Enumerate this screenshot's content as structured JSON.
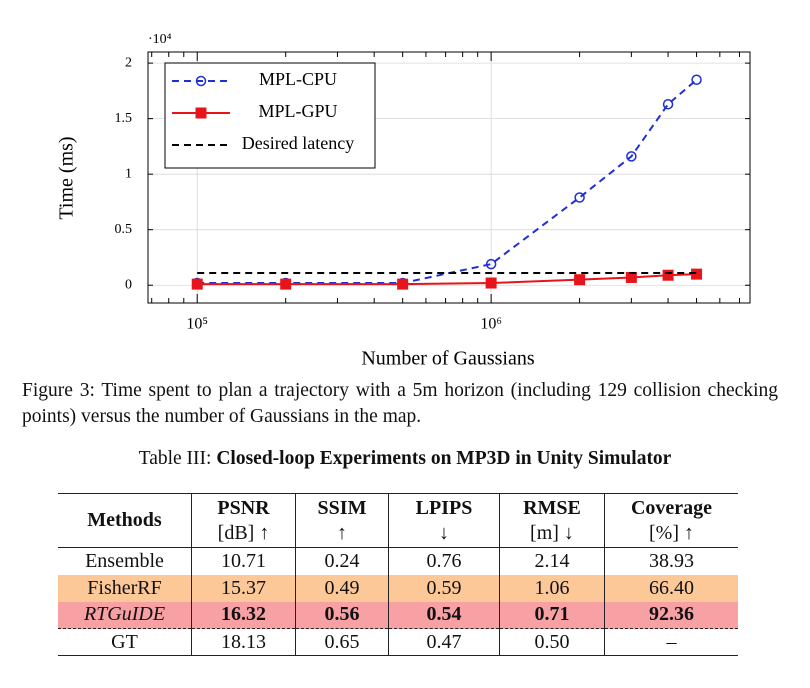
{
  "chart_data": {
    "type": "line",
    "y_multiplier": "·10⁴",
    "x_label": "Number of Gaussians",
    "y_label": "Time (ms)",
    "log_x": true,
    "grid": true,
    "legend": "upper left",
    "xlim": [
      68000,
      7600000
    ],
    "ylim": [
      -0.16,
      2.1
    ],
    "xticks": [
      {
        "value": 100000,
        "label": "10⁵"
      },
      {
        "value": 1000000,
        "label": "10⁶"
      }
    ],
    "xminor_ticks": [
      70000,
      80000,
      90000,
      200000,
      300000,
      400000,
      500000,
      600000,
      700000,
      800000,
      900000,
      2000000,
      3000000,
      4000000,
      5000000,
      6000000,
      7000000
    ],
    "yticks": [
      0,
      0.5,
      1,
      1.5,
      2
    ],
    "series": [
      {
        "name": "MPL-CPU",
        "color": "#1f2fd6",
        "dash": true,
        "marker": "circle",
        "x": [
          100000,
          200000,
          500000,
          1000000,
          2000000,
          3000000,
          4000000,
          5000000
        ],
        "values": [
          0.02,
          0.02,
          0.02,
          0.19,
          0.79,
          1.16,
          1.63,
          1.85
        ]
      },
      {
        "name": "MPL-GPU",
        "color": "#e8141c",
        "dash": false,
        "marker": "square",
        "x": [
          100000,
          200000,
          500000,
          1000000,
          2000000,
          3000000,
          4000000,
          5000000
        ],
        "values": [
          0.01,
          0.01,
          0.01,
          0.02,
          0.05,
          0.07,
          0.09,
          0.1
        ]
      },
      {
        "name": "Desired latency",
        "color": "#000000",
        "dash": true,
        "marker": "none",
        "x": [
          100000,
          5000000
        ],
        "values": [
          0.11,
          0.11
        ]
      }
    ]
  },
  "caption": {
    "label": "Figure 3:",
    "text": "Time spent to plan a trajectory with a 5m horizon (including 129 collision checking points) versus the number of Gaussians in the map."
  },
  "table": {
    "label": "Table III:",
    "title": "Closed-loop Experiments on MP3D in Unity Simulator",
    "header": [
      [
        "Methods"
      ],
      [
        "PSNR",
        "[dB] ↑"
      ],
      [
        "SSIM",
        "↑"
      ],
      [
        "LPIPS",
        "↓"
      ],
      [
        "RMSE",
        "[m] ↓"
      ],
      [
        "Coverage",
        "[%] ↑"
      ]
    ],
    "rows": [
      {
        "cells": [
          "Ensemble",
          "10.71",
          "0.24",
          "0.76",
          "2.14",
          "38.93"
        ]
      },
      {
        "cells": [
          "FisherRF",
          "15.37",
          "0.49",
          "0.59",
          "1.06",
          "66.40"
        ],
        "color": "#fcc898"
      },
      {
        "cells": [
          "RTGuIDE",
          "16.32",
          "0.56",
          "0.54",
          "0.71",
          "92.36"
        ],
        "color": "#f7a1a4",
        "bold": true,
        "italic_method": true
      },
      {
        "cells": [
          "GT",
          "18.13",
          "0.65",
          "0.47",
          "0.50",
          "–"
        ],
        "dashed_top": true
      }
    ]
  }
}
